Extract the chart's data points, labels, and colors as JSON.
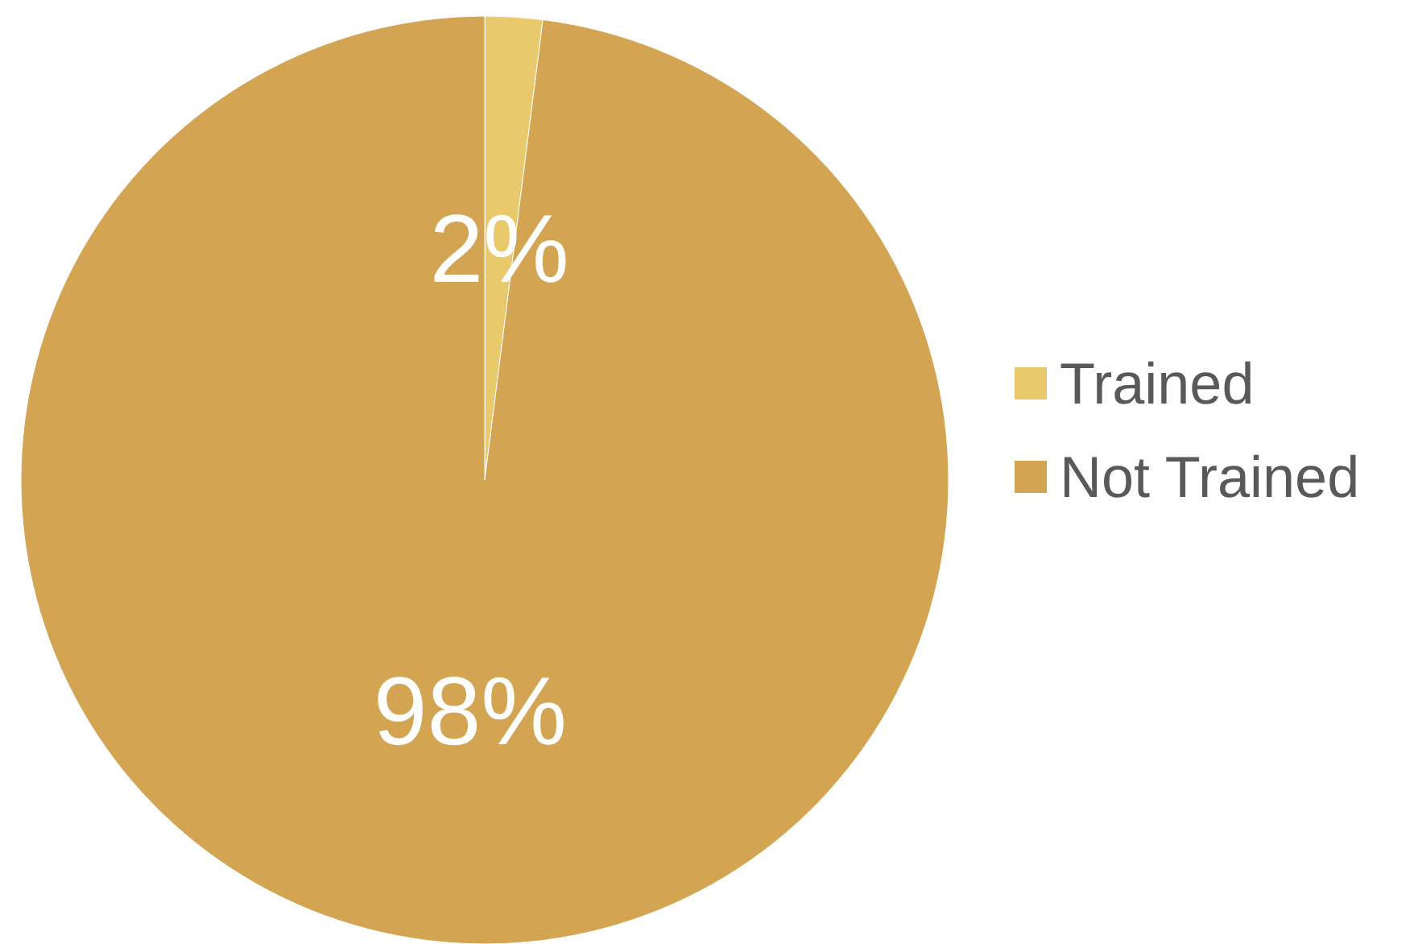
{
  "chart_data": {
    "type": "pie",
    "categories": [
      "Trained",
      "Not Trained"
    ],
    "values": [
      2,
      98
    ],
    "colors": [
      "#e8c96c",
      "#d3a452"
    ],
    "value_labels": [
      "2%",
      "98%"
    ],
    "legend": "right"
  }
}
